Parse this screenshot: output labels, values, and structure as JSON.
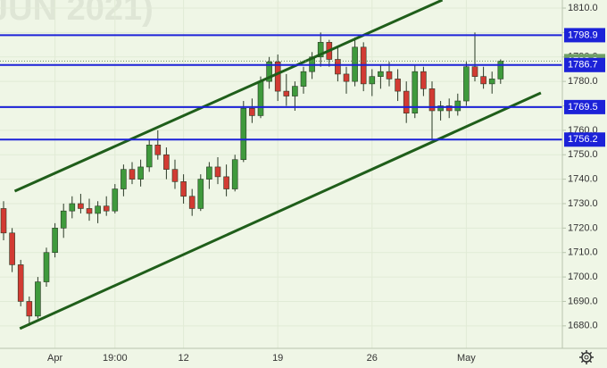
{
  "chart_data": {
    "type": "candlestick",
    "watermark": "JUN 2021)",
    "categories": [
      null,
      null,
      null,
      null,
      null,
      null,
      "Apr",
      null,
      null,
      null,
      null,
      null,
      null,
      "19:00",
      null,
      null,
      null,
      null,
      null,
      null,
      null,
      "12",
      null,
      null,
      null,
      null,
      null,
      null,
      null,
      null,
      null,
      null,
      "19",
      null,
      null,
      null,
      null,
      null,
      null,
      null,
      null,
      null,
      null,
      "26",
      null,
      null,
      null,
      null,
      null,
      null,
      null,
      null,
      null,
      null,
      "May",
      null,
      null,
      null,
      null
    ],
    "open": [
      1728,
      1718,
      1705,
      1690,
      1684,
      1698,
      1710,
      1720,
      1727,
      1730,
      1728,
      1726,
      1729,
      1727,
      1736,
      1744,
      1740,
      1745,
      1754,
      1750,
      1744,
      1739,
      1733,
      1728,
      1740,
      1745,
      1741,
      1736,
      1748,
      1769,
      1766,
      1780,
      1788,
      1776,
      1774,
      1778,
      1784,
      1790,
      1796,
      1789,
      1783,
      1780,
      1794,
      1779,
      1782,
      1784,
      1781,
      1776,
      1767,
      1784,
      1777,
      1768,
      1770,
      1768,
      1772,
      1786,
      1782,
      1779,
      1781
    ],
    "high": [
      1731,
      1720,
      1707,
      1692,
      1700,
      1712,
      1722,
      1730,
      1733,
      1734,
      1732,
      1731,
      1733,
      1738,
      1746,
      1747,
      1748,
      1756,
      1760,
      1753,
      1748,
      1742,
      1736,
      1742,
      1747,
      1749,
      1746,
      1750,
      1772,
      1773,
      1782,
      1790,
      1791,
      1783,
      1780,
      1786,
      1792,
      1800,
      1797,
      1794,
      1786,
      1798,
      1796,
      1785,
      1787,
      1788,
      1785,
      1780,
      1787,
      1786,
      1780,
      1772,
      1773,
      1775,
      1788,
      1800,
      1786,
      1784,
      1789
    ],
    "low": [
      1715,
      1702,
      1688,
      1680,
      1683,
      1696,
      1708,
      1716,
      1724,
      1726,
      1723,
      1722,
      1725,
      1726,
      1733,
      1738,
      1737,
      1743,
      1748,
      1740,
      1736,
      1730,
      1725,
      1727,
      1736,
      1738,
      1733,
      1735,
      1747,
      1763,
      1765,
      1777,
      1772,
      1770,
      1768,
      1775,
      1781,
      1786,
      1786,
      1780,
      1775,
      1778,
      1776,
      1774,
      1777,
      1778,
      1772,
      1763,
      1765,
      1774,
      1756,
      1764,
      1765,
      1766,
      1770,
      1780,
      1777,
      1775,
      1779
    ],
    "close": [
      1718,
      1705,
      1690,
      1684,
      1698,
      1710,
      1720,
      1727,
      1730,
      1728,
      1726,
      1729,
      1727,
      1736,
      1744,
      1740,
      1745,
      1754,
      1750,
      1744,
      1739,
      1733,
      1728,
      1740,
      1745,
      1741,
      1736,
      1748,
      1769,
      1766,
      1780,
      1788,
      1776,
      1774,
      1778,
      1784,
      1790,
      1796,
      1789,
      1783,
      1780,
      1794,
      1779,
      1782,
      1784,
      1781,
      1776,
      1767,
      1784,
      1777,
      1768,
      1770,
      1768,
      1772,
      1786,
      1782,
      1779,
      1781,
      1788.3
    ],
    "up_color": "#3f9a3c",
    "down_color": "#d23b33",
    "levels": [
      1798.9,
      1786.7,
      1769.5,
      1756.2
    ],
    "level_color": "#1c22d8",
    "trendlines": [
      {
        "x": [
          1.3,
          51.2
        ],
        "y": [
          1735.1,
          1813.3
        ]
      },
      {
        "x": [
          1.9,
          62.7
        ],
        "y": [
          1678.9,
          1775.3
        ]
      }
    ],
    "trend_color": "#1f5e1a",
    "ylim": [
      1670.8,
      1813.3
    ],
    "yticks": [
      {
        "value": 1680,
        "label": "1680.0"
      },
      {
        "value": 1690,
        "label": "1690.0"
      },
      {
        "value": 1700,
        "label": "1700.0"
      },
      {
        "value": 1710,
        "label": "1710.0"
      },
      {
        "value": 1720,
        "label": "1720.0"
      },
      {
        "value": 1730,
        "label": "1730.0"
      },
      {
        "value": 1740,
        "label": "1740.0"
      },
      {
        "value": 1750,
        "label": "1750.0"
      },
      {
        "value": 1760,
        "label": "1760.0"
      },
      {
        "value": 1770,
        "label": "1770.0"
      },
      {
        "value": 1780,
        "label": "1780.0"
      },
      {
        "value": 1790,
        "label": "1790.0"
      },
      {
        "value": 1800,
        "label": "1800.0"
      },
      {
        "value": 1810,
        "label": "1810.0"
      }
    ],
    "grid": true
  }
}
